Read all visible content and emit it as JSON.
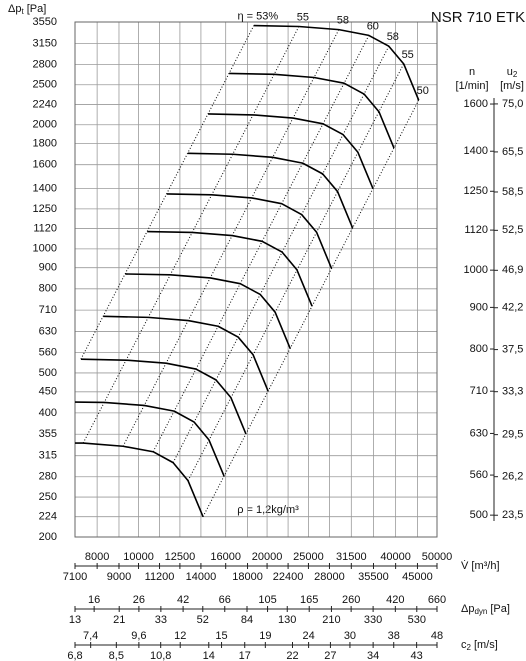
{
  "chart_data": {
    "type": "line",
    "title": "NSR 710 ETK",
    "y_label": {
      "main": "Δp",
      "sub": "t",
      "unit": "[Pa]"
    },
    "xscale": "log",
    "yscale": "log",
    "grid": true,
    "xlim": [
      7100,
      50000
    ],
    "xticks": [
      7100,
      8000,
      9000,
      10000,
      11200,
      12500,
      14000,
      16000,
      18000,
      20000,
      22400,
      25000,
      28000,
      31500,
      35500,
      40000,
      45000,
      50000
    ],
    "x_label": {
      "main": "V̇ [m³/h]"
    },
    "ylim": [
      200,
      3550
    ],
    "yticks": [
      200,
      224,
      250,
      280,
      315,
      355,
      400,
      450,
      500,
      560,
      630,
      710,
      800,
      900,
      1000,
      1120,
      1250,
      1400,
      1600,
      1800,
      2000,
      2240,
      2500,
      2800,
      3150,
      3550
    ],
    "dyn_axis": {
      "label": {
        "main": "Δp",
        "sub": "dyn",
        "unit": "[Pa]"
      },
      "lim": [
        13,
        660
      ],
      "ticks": [
        13,
        16,
        21,
        26,
        33,
        42,
        52,
        66,
        84,
        105,
        130,
        165,
        210,
        260,
        330,
        420,
        530,
        660
      ]
    },
    "c2_axis": {
      "label": {
        "main": "c",
        "sub": "2",
        "unit": "[m/s]"
      },
      "lim": [
        6.8,
        48
      ],
      "ticks": [
        {
          "value": 6.8,
          "label": "6,8"
        },
        {
          "value": 7.4,
          "label": "7,4"
        },
        {
          "value": 8.5,
          "label": "8,5"
        },
        {
          "value": 9.6,
          "label": "9,6"
        },
        {
          "value": 10.8,
          "label": "10,8"
        },
        12,
        14,
        15,
        17,
        19,
        22,
        24,
        27,
        30,
        34,
        38,
        43,
        48
      ]
    },
    "n_axis": {
      "label": {
        "main": "n",
        "unit": "[1/min]"
      },
      "lim": [
        470,
        2018
      ],
      "ticks": [
        500,
        560,
        630,
        710,
        800,
        900,
        1000,
        1120,
        1250,
        1400,
        1600
      ]
    },
    "u2_axis": {
      "label": {
        "main": "u",
        "sub": "2",
        "unit": "[m/s]"
      },
      "lim": [
        22.1,
        94.5
      ],
      "ticks": [
        {
          "value": 23.5,
          "label": "23,5"
        },
        {
          "value": 26.2,
          "label": "26,2"
        },
        {
          "value": 29.5,
          "label": "29,5"
        },
        {
          "value": 33.3,
          "label": "33,3"
        },
        {
          "value": 37.5,
          "label": "37,5"
        },
        {
          "value": 42.2,
          "label": "42,2"
        },
        {
          "value": 46.9,
          "label": "46,9"
        },
        {
          "value": 52.5,
          "label": "52,5"
        },
        {
          "value": 58.5,
          "label": "58,5"
        },
        {
          "value": 65.5,
          "label": "65,5"
        },
        {
          "value": 75.0,
          "label": "75,0"
        }
      ]
    },
    "series": [
      {
        "color": "#000000",
        "x": [
          7100,
          7420,
          9200,
          10820,
          12050,
          13060,
          14160
        ],
        "values": [
          338,
          338,
          332,
          322,
          303,
          274,
          224
        ]
      },
      {
        "color": "#000000",
        "x": [
          7100,
          8310,
          10310,
          12120,
          13500,
          14620,
          15860
        ],
        "values": [
          425,
          424,
          417,
          404,
          380,
          344,
          281
        ]
      },
      {
        "color": "#000000",
        "x": [
          7330,
          9350,
          11600,
          13630,
          15180,
          16450,
          17840
        ],
        "values": [
          540,
          537,
          528,
          511,
          481,
          436,
          356
        ]
      },
      {
        "color": "#000000",
        "x": [
          8270,
          10540,
          13070,
          15360,
          17110,
          18540,
          20110
        ],
        "values": [
          686,
          682,
          670,
          649,
          611,
          554,
          452
        ]
      },
      {
        "color": "#000000",
        "x": [
          9310,
          11870,
          14730,
          17310,
          19280,
          20890,
          22660
        ],
        "values": [
          869,
          865,
          850,
          823,
          775,
          702,
          573
        ]
      },
      {
        "color": "#000000",
        "x": [
          10480,
          13360,
          16570,
          19470,
          21690,
          23500,
          25490
        ],
        "values": [
          1101,
          1096,
          1077,
          1043,
          982,
          889,
          726
        ]
      },
      {
        "color": "#000000",
        "x": [
          11640,
          14840,
          18410,
          21640,
          24100,
          26110,
          28320
        ],
        "values": [
          1359,
          1352,
          1329,
          1287,
          1211,
          1098,
          896
        ]
      },
      {
        "color": "#000000",
        "x": [
          13040,
          16620,
          20620,
          24230,
          26990,
          29250,
          31720
        ],
        "values": [
          1705,
          1696,
          1667,
          1614,
          1520,
          1377,
          1124
        ]
      },
      {
        "color": "#000000",
        "x": [
          14550,
          18550,
          23010,
          27050,
          30130,
          32640,
          35400
        ],
        "values": [
          2124,
          2113,
          2076,
          2010,
          1893,
          1715,
          1400
        ]
      },
      {
        "color": "#000000",
        "x": [
          16300,
          20780,
          25770,
          30290,
          33740,
          36560,
          39650
        ],
        "values": [
          2664,
          2650,
          2604,
          2522,
          2374,
          2151,
          1756
        ]
      },
      {
        "color": "#000000",
        "x": [
          18620,
          23740,
          29450,
          34620,
          38560,
          41780,
          45310
        ],
        "values": [
          3480,
          3462,
          3402,
          3294,
          3101,
          2810,
          2294
        ]
      }
    ],
    "efficiency_lines": [
      {
        "label": "η = 53%",
        "x": [
          7330,
          18620
        ],
        "values": [
          540,
          3480
        ]
      },
      {
        "label": "55",
        "x": [
          7420,
          23740
        ],
        "values": [
          338,
          3462
        ]
      },
      {
        "label": "58",
        "x": [
          9200,
          29450
        ],
        "values": [
          332,
          3402
        ]
      },
      {
        "label": "60",
        "x": [
          10820,
          34620
        ],
        "values": [
          322,
          3294
        ]
      },
      {
        "label": "58",
        "x": [
          12050,
          38560
        ],
        "values": [
          303,
          3101
        ]
      },
      {
        "label": "55",
        "x": [
          13060,
          41780
        ],
        "values": [
          274,
          2810
        ]
      },
      {
        "label": "50",
        "x": [
          14160,
          45310
        ],
        "values": [
          224,
          2294
        ]
      }
    ],
    "annotation": "ρ = 1,2kg/m³"
  }
}
